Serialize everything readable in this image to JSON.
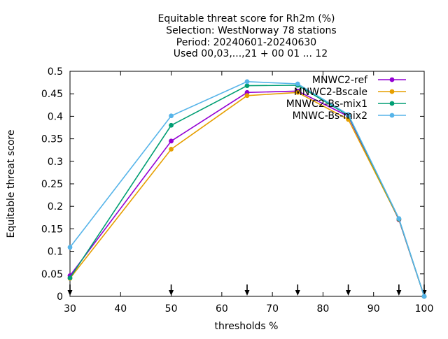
{
  "chart_data": {
    "type": "line",
    "title_lines": [
      "Equitable threat score  for Rh2m (%)",
      "Selection: WestNorway     78 stations",
      "Period: 20240601-20240630",
      "Used 00,03,...,21 + 00 01 ... 12"
    ],
    "xlabel": "thresholds %",
    "ylabel": "Equitable threat score",
    "xlim": [
      30,
      100
    ],
    "ylim": [
      0,
      0.5
    ],
    "xticks": [
      30,
      40,
      50,
      60,
      70,
      80,
      90,
      100
    ],
    "yticks": [
      0,
      0.05,
      0.1,
      0.15,
      0.2,
      0.25,
      0.3,
      0.35,
      0.4,
      0.45,
      0.5
    ],
    "ytick_labels": [
      "0",
      "0.05",
      "0.1",
      "0.15",
      "0.2",
      "0.25",
      "0.3",
      "0.35",
      "0.4",
      "0.45",
      "0.5"
    ],
    "grid": false,
    "legend_position": "top-right",
    "threshold_markers": [
      30,
      50,
      65,
      75,
      85,
      95,
      100
    ],
    "series": [
      {
        "name": "MNWC2-ref",
        "color": "#9400d3",
        "marker": "filled-circle",
        "x": [
          30,
          50,
          65,
          75,
          85,
          95,
          100
        ],
        "y": [
          0.046,
          0.345,
          0.453,
          0.456,
          0.4,
          0.17,
          0.0
        ]
      },
      {
        "name": "MNWC2-Bscale",
        "color": "#e69f00",
        "marker": "filled-circle",
        "x": [
          30,
          50,
          65,
          75,
          85,
          95,
          100
        ],
        "y": [
          0.04,
          0.327,
          0.446,
          0.453,
          0.393,
          0.171,
          0.0
        ]
      },
      {
        "name": "MNWC2-Bs-mix1",
        "color": "#009e73",
        "marker": "filled-circle",
        "x": [
          30,
          50,
          65,
          75,
          85,
          95,
          100
        ],
        "y": [
          0.041,
          0.38,
          0.468,
          0.469,
          0.402,
          0.172,
          0.0
        ]
      },
      {
        "name": "MNWC-Bs-mix2",
        "color": "#56b4e9",
        "marker": "filled-circle",
        "x": [
          30,
          50,
          65,
          75,
          85,
          95,
          100
        ],
        "y": [
          0.109,
          0.401,
          0.477,
          0.472,
          0.404,
          0.173,
          0.0
        ]
      }
    ]
  }
}
